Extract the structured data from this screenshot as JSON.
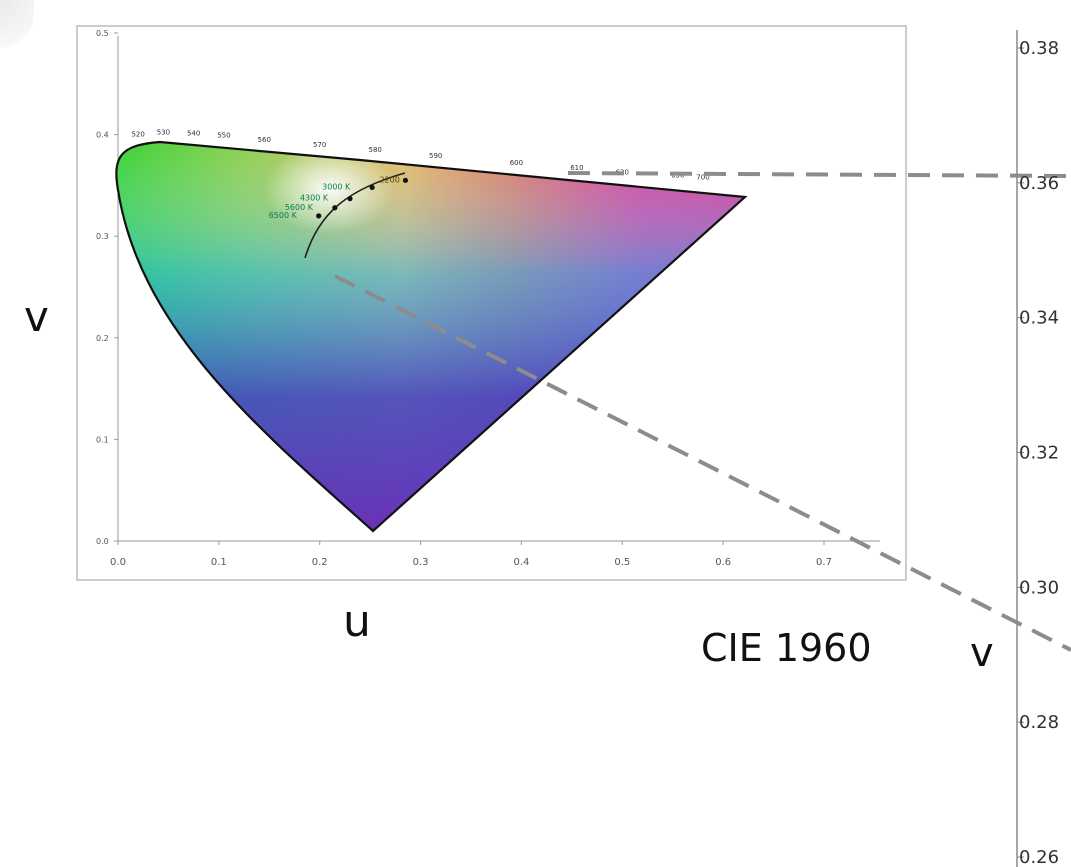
{
  "caption": "CIE 1960",
  "labels": {
    "v_left": "v",
    "u_bottom": "u",
    "v_right": "v"
  },
  "chart_data": [
    {
      "type": "scatter",
      "title": "",
      "xlabel": "u",
      "ylabel": "v",
      "xlim": [
        0.0,
        0.78
      ],
      "ylim": [
        0.0,
        0.5
      ],
      "x_ticks": [
        "0.0",
        "0.1",
        "0.2",
        "0.3",
        "0.4",
        "0.5",
        "0.6",
        "0.7"
      ],
      "y_ticks": [
        "0.0",
        "0.1",
        "0.2",
        "0.3",
        "0.4",
        "0.5"
      ],
      "grid": false,
      "spectral_locus_nm": [
        {
          "nm": "520",
          "u": 0.02,
          "v": 0.395
        },
        {
          "nm": "530",
          "u": 0.045,
          "v": 0.397
        },
        {
          "nm": "540",
          "u": 0.075,
          "v": 0.396
        },
        {
          "nm": "550",
          "u": 0.105,
          "v": 0.394
        },
        {
          "nm": "560",
          "u": 0.145,
          "v": 0.39
        },
        {
          "nm": "570",
          "u": 0.2,
          "v": 0.385
        },
        {
          "nm": "580",
          "u": 0.255,
          "v": 0.38
        },
        {
          "nm": "590",
          "u": 0.315,
          "v": 0.374
        },
        {
          "nm": "600",
          "u": 0.395,
          "v": 0.367
        },
        {
          "nm": "610",
          "u": 0.455,
          "v": 0.362
        },
        {
          "nm": "620",
          "u": 0.5,
          "v": 0.358
        },
        {
          "nm": "650",
          "u": 0.555,
          "v": 0.355
        },
        {
          "nm": "700",
          "u": 0.58,
          "v": 0.353
        }
      ],
      "planckian_points": [
        {
          "label": "2200",
          "u": 0.285,
          "v": 0.355
        },
        {
          "label": "3000 K",
          "u": 0.252,
          "v": 0.348
        },
        {
          "label": "4300 K",
          "u": 0.23,
          "v": 0.337
        },
        {
          "label": "5600 K",
          "u": 0.215,
          "v": 0.328
        },
        {
          "label": "6500 K",
          "u": 0.199,
          "v": 0.32
        }
      ],
      "colors": {
        "locus_outline": "#111111",
        "planckian": "#222222",
        "label_green": "#0a7d55",
        "zoom_lines": "#8c8c8c"
      }
    },
    {
      "type": "line",
      "title": "",
      "ylabel": "v",
      "y_ticks": [
        "0.38",
        "0.36",
        "0.34",
        "0.32",
        "0.30",
        "0.28",
        "0.26"
      ],
      "ylim": [
        0.26,
        0.38
      ]
    }
  ]
}
